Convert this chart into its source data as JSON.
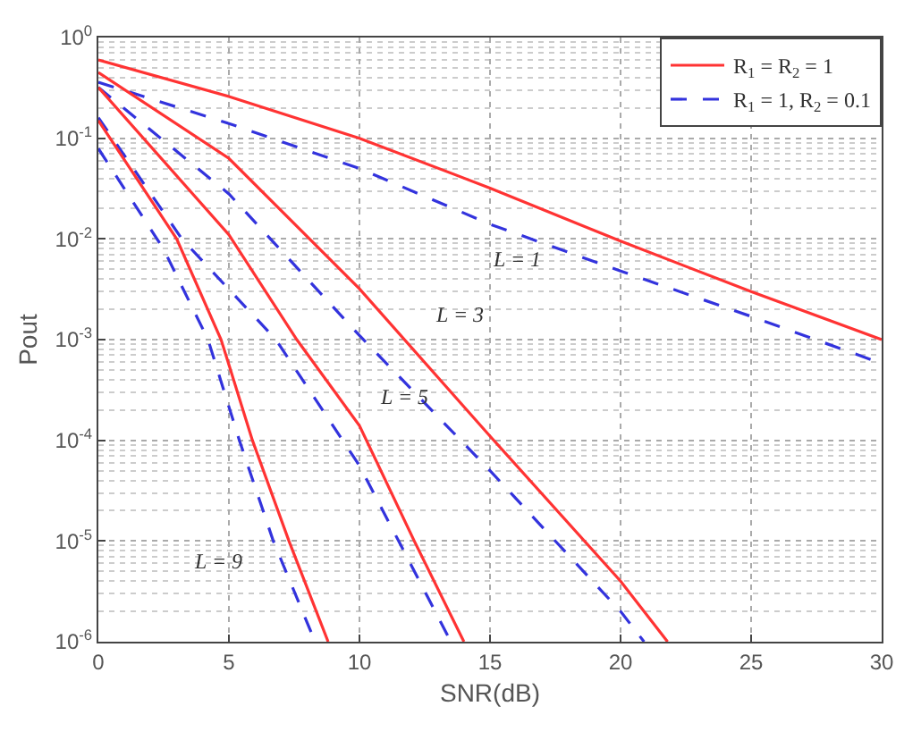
{
  "chart_data": {
    "type": "line",
    "xlabel": "SNR(dB)",
    "ylabel": "Pout",
    "log": "y",
    "grid": true,
    "legend": "top right",
    "marker": "none",
    "xlim": [
      0,
      30
    ],
    "xticks": [
      0,
      5,
      10,
      15,
      20,
      25,
      30
    ],
    "ylim": [
      1e-06,
      1
    ],
    "yticks": [
      {
        "value": 1,
        "label": "10$^{0}$"
      },
      {
        "value": 0.1,
        "label": "10$^{-1}$"
      },
      {
        "value": 0.01,
        "label": "10$^{-2}$"
      },
      {
        "value": 0.001,
        "label": "10$^{-3}$"
      },
      {
        "value": 0.0001,
        "label": "10$^{-4}$"
      },
      {
        "value": 1e-05,
        "label": "10$^{-5}$"
      },
      {
        "value": 1e-06,
        "label": "10$^{-6}$"
      }
    ],
    "series": [
      {
        "name": "R$_{1}$ = R$_{2}$ = 1",
        "color": "#ff3333",
        "line_style": "solid",
        "x": [
          0,
          5,
          10,
          15,
          20,
          25,
          30
        ],
        "values": [
          0.6,
          0.26,
          0.1,
          0.032,
          0.0095,
          0.003,
          0.001
        ]
      },
      {
        "name": "R$_{1}$ = 1, R$_{2}$ = 0.1",
        "color": "#3333dd",
        "line_style": "dashed",
        "x": [
          0,
          5,
          10,
          15,
          20,
          25,
          30
        ],
        "values": [
          0.36,
          0.14,
          0.05,
          0.014,
          0.0048,
          0.0017,
          0.00058
        ]
      },
      {
        "color": "#ff3333",
        "line_style": "solid",
        "x": [
          0,
          5,
          10,
          15,
          20,
          21.8
        ],
        "values": [
          0.45,
          0.063,
          0.0032,
          0.00011,
          4e-06,
          1e-06
        ]
      },
      {
        "color": "#3333dd",
        "line_style": "dashed",
        "x": [
          0,
          5,
          10,
          15,
          20,
          20.9
        ],
        "values": [
          0.32,
          0.028,
          0.0011,
          5e-05,
          2e-06,
          1e-06
        ]
      },
      {
        "color": "#ff3333",
        "line_style": "solid",
        "x": [
          0,
          5,
          7.6,
          10,
          12.1,
          14
        ],
        "values": [
          0.32,
          0.011,
          0.001,
          0.00014,
          1e-05,
          1e-06
        ]
      },
      {
        "color": "#3333dd",
        "line_style": "dashed",
        "x": [
          0,
          3.2,
          6.8,
          10,
          11.5,
          13.5
        ],
        "values": [
          0.16,
          0.01,
          0.001,
          5.6e-05,
          1e-05,
          1e-06
        ]
      },
      {
        "color": "#ff3333",
        "line_style": "solid",
        "x": [
          0,
          3,
          4.7,
          5.9,
          7.3,
          8.8
        ],
        "values": [
          0.15,
          0.01,
          0.001,
          0.0001,
          1e-05,
          1e-06
        ]
      },
      {
        "color": "#3333dd",
        "line_style": "dashed",
        "x": [
          0,
          2.5,
          4.2,
          5.4,
          6.7,
          8.3
        ],
        "values": [
          0.079,
          0.0079,
          0.001,
          0.0001,
          1e-05,
          1e-06
        ]
      }
    ],
    "annotations": [
      {
        "text": "L = 1",
        "x": 16,
        "y": 0.025
      },
      {
        "text": "L = 3",
        "x": 11.8,
        "y": 0.00094
      },
      {
        "text": "L = 5",
        "x": 9.5,
        "y": 0.00021
      },
      {
        "text": "L = 9",
        "x": 6.8,
        "y": 2.3e-05
      }
    ]
  }
}
